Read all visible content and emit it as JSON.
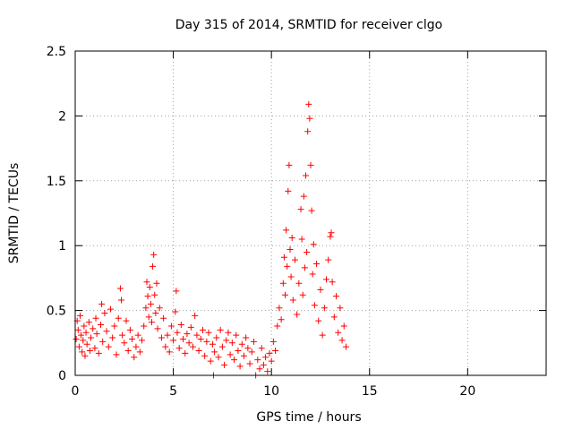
{
  "chart_data": {
    "type": "scatter",
    "title": "Day 315 of 2014, SRMTID for receiver clgo",
    "xlabel": "GPS time / hours",
    "ylabel": "SRMTID / TECUs",
    "xlim": [
      0,
      24
    ],
    "ylim": [
      0,
      2.5
    ],
    "x_ticks": [
      0,
      5,
      10,
      15,
      20
    ],
    "x_tick_labels": [
      "0",
      "5",
      "10",
      "15",
      "20"
    ],
    "y_ticks": [
      0,
      0.5,
      1,
      1.5,
      2,
      2.5
    ],
    "y_tick_labels": [
      "0",
      "0.5",
      "1",
      "1.5",
      "2",
      "2.5"
    ],
    "grid": true,
    "marker": "+",
    "color": "#ff0000",
    "series": [
      {
        "name": "SRMTID",
        "points": [
          [
            0.05,
            0.28
          ],
          [
            0.1,
            0.42
          ],
          [
            0.15,
            0.35
          ],
          [
            0.2,
            0.22
          ],
          [
            0.25,
            0.46
          ],
          [
            0.3,
            0.31
          ],
          [
            0.35,
            0.18
          ],
          [
            0.4,
            0.27
          ],
          [
            0.45,
            0.38
          ],
          [
            0.5,
            0.15
          ],
          [
            0.55,
            0.33
          ],
          [
            0.6,
            0.24
          ],
          [
            0.7,
            0.41
          ],
          [
            0.75,
            0.19
          ],
          [
            0.8,
            0.29
          ],
          [
            0.9,
            0.36
          ],
          [
            1.0,
            0.21
          ],
          [
            1.05,
            0.44
          ],
          [
            1.1,
            0.32
          ],
          [
            1.2,
            0.17
          ],
          [
            1.3,
            0.39
          ],
          [
            1.35,
            0.55
          ],
          [
            1.4,
            0.26
          ],
          [
            1.5,
            0.48
          ],
          [
            1.6,
            0.34
          ],
          [
            1.7,
            0.22
          ],
          [
            1.8,
            0.51
          ],
          [
            1.9,
            0.29
          ],
          [
            2.0,
            0.38
          ],
          [
            2.1,
            0.16
          ],
          [
            2.2,
            0.44
          ],
          [
            2.3,
            0.67
          ],
          [
            2.35,
            0.58
          ],
          [
            2.4,
            0.31
          ],
          [
            2.5,
            0.25
          ],
          [
            2.6,
            0.42
          ],
          [
            2.7,
            0.19
          ],
          [
            2.8,
            0.35
          ],
          [
            2.9,
            0.28
          ],
          [
            3.0,
            0.14
          ],
          [
            3.1,
            0.22
          ],
          [
            3.2,
            0.31
          ],
          [
            3.3,
            0.18
          ],
          [
            3.4,
            0.27
          ],
          [
            3.5,
            0.38
          ],
          [
            3.6,
            0.52
          ],
          [
            3.65,
            0.72
          ],
          [
            3.7,
            0.61
          ],
          [
            3.75,
            0.45
          ],
          [
            3.8,
            0.68
          ],
          [
            3.85,
            0.55
          ],
          [
            3.9,
            0.41
          ],
          [
            3.95,
            0.84
          ],
          [
            4.0,
            0.93
          ],
          [
            4.05,
            0.62
          ],
          [
            4.1,
            0.48
          ],
          [
            4.15,
            0.71
          ],
          [
            4.2,
            0.36
          ],
          [
            4.3,
            0.52
          ],
          [
            4.4,
            0.29
          ],
          [
            4.5,
            0.44
          ],
          [
            4.6,
            0.22
          ],
          [
            4.7,
            0.31
          ],
          [
            4.8,
            0.18
          ],
          [
            4.9,
            0.38
          ],
          [
            5.0,
            0.27
          ],
          [
            5.1,
            0.49
          ],
          [
            5.15,
            0.65
          ],
          [
            5.2,
            0.33
          ],
          [
            5.3,
            0.21
          ],
          [
            5.4,
            0.39
          ],
          [
            5.5,
            0.28
          ],
          [
            5.6,
            0.17
          ],
          [
            5.7,
            0.32
          ],
          [
            5.8,
            0.25
          ],
          [
            5.9,
            0.37
          ],
          [
            6.0,
            0.22
          ],
          [
            6.1,
            0.46
          ],
          [
            6.2,
            0.31
          ],
          [
            6.3,
            0.19
          ],
          [
            6.4,
            0.28
          ],
          [
            6.5,
            0.35
          ],
          [
            6.6,
            0.15
          ],
          [
            6.7,
            0.26
          ],
          [
            6.8,
            0.33
          ],
          [
            6.9,
            0.11
          ],
          [
            7.0,
            0.24
          ],
          [
            7.05,
            0.0
          ],
          [
            7.1,
            0.18
          ],
          [
            7.2,
            0.29
          ],
          [
            7.3,
            0.14
          ],
          [
            7.4,
            0.35
          ],
          [
            7.5,
            0.22
          ],
          [
            7.6,
            0.08
          ],
          [
            7.7,
            0.27
          ],
          [
            7.8,
            0.33
          ],
          [
            7.9,
            0.16
          ],
          [
            8.0,
            0.25
          ],
          [
            8.1,
            0.12
          ],
          [
            8.2,
            0.31
          ],
          [
            8.3,
            0.19
          ],
          [
            8.4,
            0.07
          ],
          [
            8.5,
            0.24
          ],
          [
            8.6,
            0.15
          ],
          [
            8.7,
            0.29
          ],
          [
            8.8,
            0.21
          ],
          [
            8.9,
            0.09
          ],
          [
            9.0,
            0.18
          ],
          [
            9.1,
            0.26
          ],
          [
            9.2,
            0.0
          ],
          [
            9.3,
            0.12
          ],
          [
            9.4,
            0.05
          ],
          [
            9.5,
            0.21
          ],
          [
            9.6,
            0.08
          ],
          [
            9.7,
            0.14
          ],
          [
            9.8,
            0.03
          ],
          [
            9.9,
            0.17
          ],
          [
            10.0,
            0.11
          ],
          [
            10.1,
            0.26
          ],
          [
            10.2,
            0.19
          ],
          [
            10.3,
            0.38
          ],
          [
            10.4,
            0.52
          ],
          [
            10.5,
            0.43
          ],
          [
            10.6,
            0.71
          ],
          [
            10.65,
            0.91
          ],
          [
            10.7,
            0.62
          ],
          [
            10.75,
            1.12
          ],
          [
            10.8,
            0.84
          ],
          [
            10.85,
            1.42
          ],
          [
            10.9,
            1.62
          ],
          [
            10.95,
            0.97
          ],
          [
            11.0,
            0.76
          ],
          [
            11.05,
            1.06
          ],
          [
            11.1,
            0.58
          ],
          [
            11.2,
            0.89
          ],
          [
            11.3,
            0.47
          ],
          [
            11.4,
            0.71
          ],
          [
            11.5,
            1.28
          ],
          [
            11.55,
            1.05
          ],
          [
            11.6,
            0.62
          ],
          [
            11.65,
            1.38
          ],
          [
            11.7,
            0.83
          ],
          [
            11.75,
            1.54
          ],
          [
            11.8,
            0.95
          ],
          [
            11.85,
            1.88
          ],
          [
            11.9,
            2.09
          ],
          [
            11.95,
            1.98
          ],
          [
            12.0,
            1.62
          ],
          [
            12.05,
            1.27
          ],
          [
            12.1,
            0.78
          ],
          [
            12.15,
            1.01
          ],
          [
            12.2,
            0.54
          ],
          [
            12.3,
            0.86
          ],
          [
            12.4,
            0.42
          ],
          [
            12.5,
            0.66
          ],
          [
            12.6,
            0.31
          ],
          [
            12.7,
            0.52
          ],
          [
            12.8,
            0.74
          ],
          [
            12.9,
            0.89
          ],
          [
            13.0,
            1.07
          ],
          [
            13.05,
            1.1
          ],
          [
            13.1,
            0.72
          ],
          [
            13.2,
            0.45
          ],
          [
            13.3,
            0.61
          ],
          [
            13.4,
            0.33
          ],
          [
            13.5,
            0.52
          ],
          [
            13.6,
            0.27
          ],
          [
            13.7,
            0.38
          ],
          [
            13.8,
            0.22
          ]
        ]
      }
    ]
  }
}
